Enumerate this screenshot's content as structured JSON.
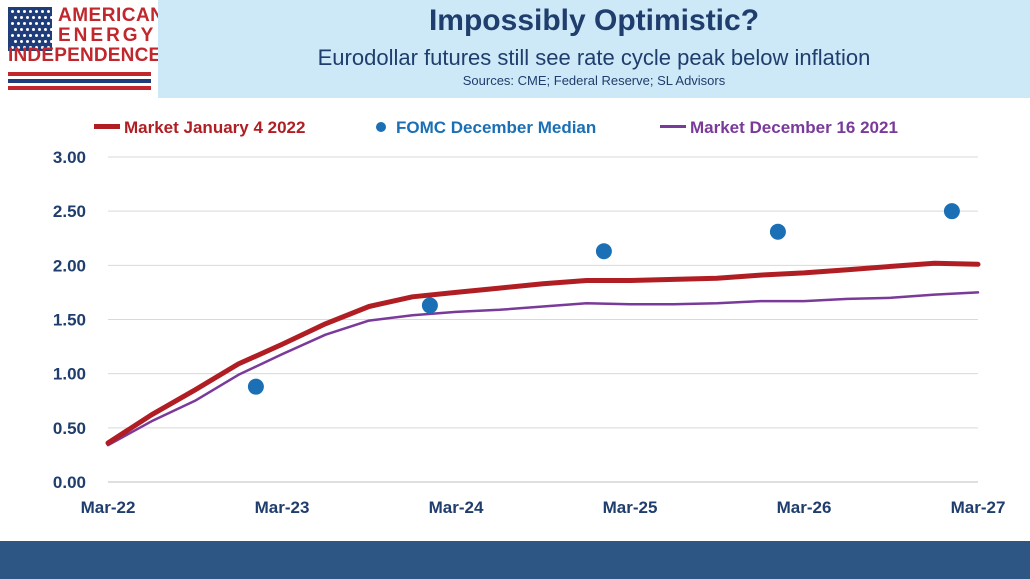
{
  "logo": {
    "line1": "AMERICAN",
    "line2": "ENERGY",
    "line3": "INDEPENDENCE"
  },
  "header": {
    "title": "Impossibly Optimistic?",
    "subtitle": "Eurodollar futures still see rate cycle peak below inflation",
    "sources": "Sources: CME; Federal Reserve; SL Advisors"
  },
  "colors": {
    "header_bg": "#cde9f7",
    "title_text": "#1f3d6d",
    "market_jan": "#b01e23",
    "fomc": "#1a6fb5",
    "market_dec": "#7a3a9a",
    "axis_text": "#1f3d6d",
    "footer_bar": "#2d5684",
    "logo_red": "#c0282d",
    "logo_blue": "#1f3d7a"
  },
  "chart_data": {
    "type": "line",
    "x_ticks": [
      "Mar-22",
      "Mar-23",
      "Mar-24",
      "Mar-25",
      "Mar-26",
      "Mar-27"
    ],
    "y_ticks": [
      "0.00",
      "0.50",
      "1.00",
      "1.50",
      "2.00",
      "2.50",
      "3.00"
    ],
    "xlim": [
      0,
      20
    ],
    "ylim": [
      0,
      3
    ],
    "grid": "horizontal",
    "legend_position": "top",
    "series": [
      {
        "name": "Market January 4 2022",
        "type": "line",
        "x": [
          0,
          1,
          2,
          3,
          4,
          5,
          6,
          7,
          8,
          9,
          10,
          11,
          12,
          13,
          14,
          15,
          16,
          17,
          18,
          19,
          20
        ],
        "values": [
          0.36,
          0.62,
          0.85,
          1.09,
          1.27,
          1.46,
          1.62,
          1.71,
          1.75,
          1.79,
          1.83,
          1.86,
          1.86,
          1.87,
          1.88,
          1.91,
          1.93,
          1.96,
          1.99,
          2.02,
          2.01
        ]
      },
      {
        "name": "FOMC December Median",
        "type": "scatter",
        "x": [
          3.4,
          7.4,
          11.4,
          15.4,
          19.4
        ],
        "values": [
          0.88,
          1.63,
          2.13,
          2.31,
          2.5
        ]
      },
      {
        "name": "Market December 16 2021",
        "type": "line",
        "x": [
          0,
          1,
          2,
          3,
          4,
          5,
          6,
          7,
          8,
          9,
          10,
          11,
          12,
          13,
          14,
          15,
          16,
          17,
          18,
          19,
          20
        ],
        "values": [
          0.34,
          0.56,
          0.75,
          0.99,
          1.18,
          1.36,
          1.49,
          1.54,
          1.57,
          1.59,
          1.62,
          1.65,
          1.64,
          1.64,
          1.65,
          1.67,
          1.67,
          1.69,
          1.7,
          1.73,
          1.75
        ]
      }
    ]
  }
}
